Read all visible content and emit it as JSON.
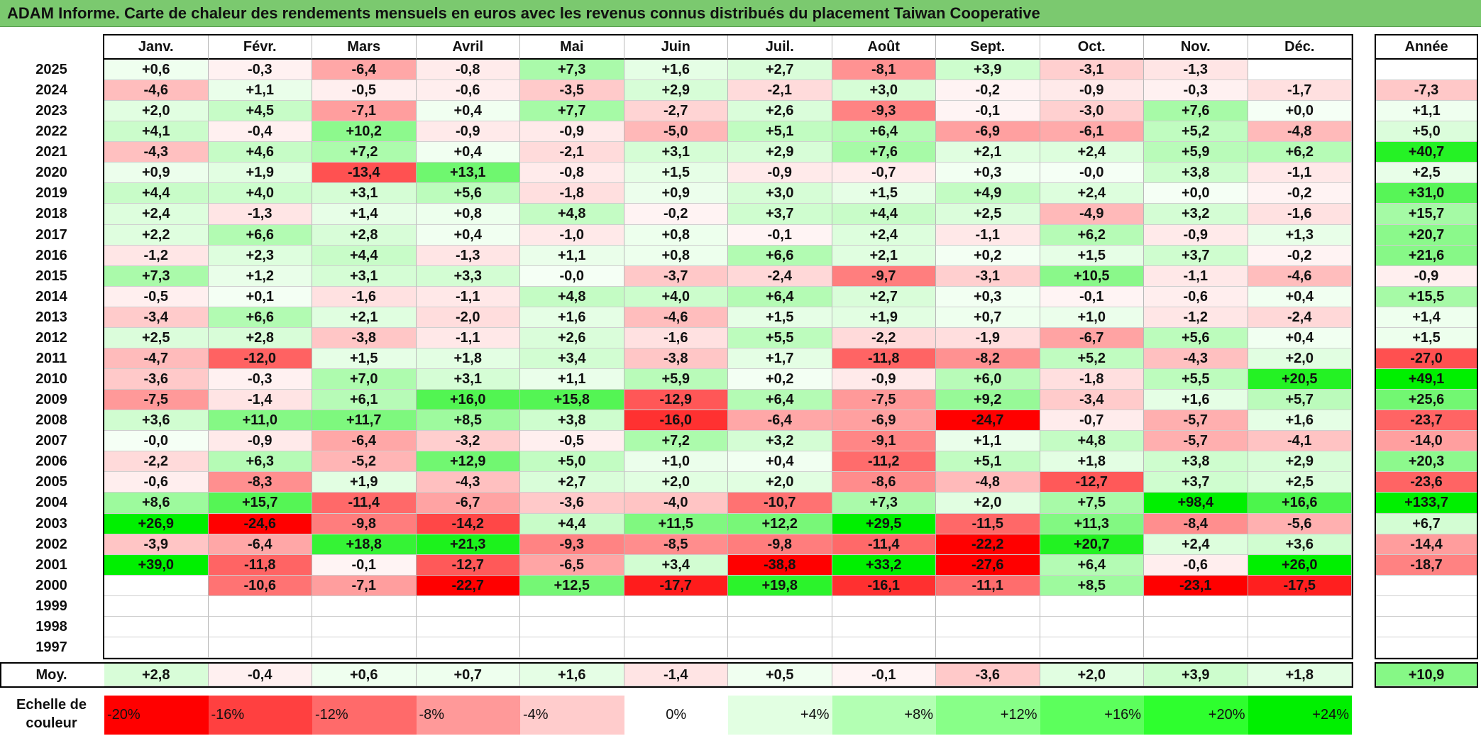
{
  "title": "ADAM Informe. Carte de chaleur des rendements mensuels en euros avec les revenus connus distribués du placement Taiwan Cooperative",
  "chart_data": {
    "type": "heatmap",
    "title": "ADAM Informe. Carte de chaleur des rendements mensuels en euros avec les revenus connus distribués du placement Taiwan Cooperative",
    "columns": [
      "Janv.",
      "Févr.",
      "Mars",
      "Avril",
      "Mai",
      "Juin",
      "Juil.",
      "Août",
      "Sept.",
      "Oct.",
      "Nov.",
      "Déc."
    ],
    "annual_header": "Année",
    "rows": [
      {
        "year": "2025",
        "values": [
          "+0,6",
          "-0,3",
          "-6,4",
          "-0,8",
          "+7,3",
          "+1,6",
          "+2,7",
          "-8,1",
          "+3,9",
          "-3,1",
          "-1,3",
          ""
        ],
        "annual": ""
      },
      {
        "year": "2024",
        "values": [
          "-4,6",
          "+1,1",
          "-0,5",
          "-0,6",
          "-3,5",
          "+2,9",
          "-2,1",
          "+3,0",
          "-0,2",
          "-0,9",
          "-0,3",
          "-1,7"
        ],
        "annual": "-7,3"
      },
      {
        "year": "2023",
        "values": [
          "+2,0",
          "+4,5",
          "-7,1",
          "+0,4",
          "+7,7",
          "-2,7",
          "+2,6",
          "-9,3",
          "-0,1",
          "-3,0",
          "+7,6",
          "+0,0"
        ],
        "annual": "+1,1"
      },
      {
        "year": "2022",
        "values": [
          "+4,1",
          "-0,4",
          "+10,2",
          "-0,9",
          "-0,9",
          "-5,0",
          "+5,1",
          "+6,4",
          "-6,9",
          "-6,1",
          "+5,2",
          "-4,8"
        ],
        "annual": "+5,0"
      },
      {
        "year": "2021",
        "values": [
          "-4,3",
          "+4,6",
          "+7,2",
          "+0,4",
          "-2,1",
          "+3,1",
          "+2,9",
          "+7,6",
          "+2,1",
          "+2,4",
          "+5,9",
          "+6,2"
        ],
        "annual": "+40,7"
      },
      {
        "year": "2020",
        "values": [
          "+0,9",
          "+1,9",
          "-13,4",
          "+13,1",
          "-0,8",
          "+1,5",
          "-0,9",
          "-0,7",
          "+0,3",
          "-0,0",
          "+3,8",
          "-1,1"
        ],
        "annual": "+2,5"
      },
      {
        "year": "2019",
        "values": [
          "+4,4",
          "+4,0",
          "+3,1",
          "+5,6",
          "-1,8",
          "+0,9",
          "+3,0",
          "+1,5",
          "+4,9",
          "+2,4",
          "+0,0",
          "-0,2"
        ],
        "annual": "+31,0"
      },
      {
        "year": "2018",
        "values": [
          "+2,4",
          "-1,3",
          "+1,4",
          "+0,8",
          "+4,8",
          "-0,2",
          "+3,7",
          "+4,4",
          "+2,5",
          "-4,9",
          "+3,2",
          "-1,6"
        ],
        "annual": "+15,7"
      },
      {
        "year": "2017",
        "values": [
          "+2,2",
          "+6,6",
          "+2,8",
          "+0,4",
          "-1,0",
          "+0,8",
          "-0,1",
          "+2,4",
          "-1,1",
          "+6,2",
          "-0,9",
          "+1,3"
        ],
        "annual": "+20,7"
      },
      {
        "year": "2016",
        "values": [
          "-1,2",
          "+2,3",
          "+4,4",
          "-1,3",
          "+1,1",
          "+0,8",
          "+6,6",
          "+2,1",
          "+0,2",
          "+1,5",
          "+3,7",
          "-0,2"
        ],
        "annual": "+21,6"
      },
      {
        "year": "2015",
        "values": [
          "+7,3",
          "+1,2",
          "+3,1",
          "+3,3",
          "-0,0",
          "-3,7",
          "-2,4",
          "-9,7",
          "-3,1",
          "+10,5",
          "-1,1",
          "-4,6"
        ],
        "annual": "-0,9"
      },
      {
        "year": "2014",
        "values": [
          "-0,5",
          "+0,1",
          "-1,6",
          "-1,1",
          "+4,8",
          "+4,0",
          "+6,4",
          "+2,7",
          "+0,3",
          "-0,1",
          "-0,6",
          "+0,4"
        ],
        "annual": "+15,5"
      },
      {
        "year": "2013",
        "values": [
          "-3,4",
          "+6,6",
          "+2,1",
          "-2,0",
          "+1,6",
          "-4,6",
          "+1,5",
          "+1,9",
          "+0,7",
          "+1,0",
          "-1,2",
          "-2,4"
        ],
        "annual": "+1,4"
      },
      {
        "year": "2012",
        "values": [
          "+2,5",
          "+2,8",
          "-3,8",
          "-1,1",
          "+2,6",
          "-1,6",
          "+5,5",
          "-2,2",
          "-1,9",
          "-6,7",
          "+5,6",
          "+0,4"
        ],
        "annual": "+1,5"
      },
      {
        "year": "2011",
        "values": [
          "-4,7",
          "-12,0",
          "+1,5",
          "+1,8",
          "+3,4",
          "-3,8",
          "+1,7",
          "-11,8",
          "-8,2",
          "+5,2",
          "-4,3",
          "+2,0"
        ],
        "annual": "-27,0"
      },
      {
        "year": "2010",
        "values": [
          "-3,6",
          "-0,3",
          "+7,0",
          "+3,1",
          "+1,1",
          "+5,9",
          "+0,2",
          "-0,9",
          "+6,0",
          "-1,8",
          "+5,5",
          "+20,5"
        ],
        "annual": "+49,1"
      },
      {
        "year": "2009",
        "values": [
          "-7,5",
          "-1,4",
          "+6,1",
          "+16,0",
          "+15,8",
          "-12,9",
          "+6,4",
          "-7,5",
          "+9,2",
          "-3,4",
          "+1,6",
          "+5,7"
        ],
        "annual": "+25,6"
      },
      {
        "year": "2008",
        "values": [
          "+3,6",
          "+11,0",
          "+11,7",
          "+8,5",
          "+3,8",
          "-16,0",
          "-6,4",
          "-6,9",
          "-24,7",
          "-0,7",
          "-5,7",
          "+1,6"
        ],
        "annual": "-23,7"
      },
      {
        "year": "2007",
        "values": [
          "-0,0",
          "-0,9",
          "-6,4",
          "-3,2",
          "-0,5",
          "+7,2",
          "+3,2",
          "-9,1",
          "+1,1",
          "+4,8",
          "-5,7",
          "-4,1"
        ],
        "annual": "-14,0"
      },
      {
        "year": "2006",
        "values": [
          "-2,2",
          "+6,3",
          "-5,2",
          "+12,9",
          "+5,0",
          "+1,0",
          "+0,4",
          "-11,2",
          "+5,1",
          "+1,8",
          "+3,8",
          "+2,9"
        ],
        "annual": "+20,3"
      },
      {
        "year": "2005",
        "values": [
          "-0,6",
          "-8,3",
          "+1,9",
          "-4,3",
          "+2,7",
          "+2,0",
          "+2,0",
          "-8,6",
          "-4,8",
          "-12,7",
          "+3,7",
          "+2,5"
        ],
        "annual": "-23,6"
      },
      {
        "year": "2004",
        "values": [
          "+8,6",
          "+15,7",
          "-11,4",
          "-6,7",
          "-3,6",
          "-4,0",
          "-10,7",
          "+7,3",
          "+2,0",
          "+7,5",
          "+98,4",
          "+16,6"
        ],
        "annual": "+133,7"
      },
      {
        "year": "2003",
        "values": [
          "+26,9",
          "-24,6",
          "-9,8",
          "-14,2",
          "+4,4",
          "+11,5",
          "+12,2",
          "+29,5",
          "-11,5",
          "+11,3",
          "-8,4",
          "-5,6"
        ],
        "annual": "+6,7"
      },
      {
        "year": "2002",
        "values": [
          "-3,9",
          "-6,4",
          "+18,8",
          "+21,3",
          "-9,3",
          "-8,5",
          "-9,8",
          "-11,4",
          "-22,2",
          "+20,7",
          "+2,4",
          "+3,6"
        ],
        "annual": "-14,4"
      },
      {
        "year": "2001",
        "values": [
          "+39,0",
          "-11,8",
          "-0,1",
          "-12,7",
          "-6,5",
          "+3,4",
          "-38,8",
          "+33,2",
          "-27,6",
          "+6,4",
          "-0,6",
          "+26,0"
        ],
        "annual": "-18,7"
      },
      {
        "year": "2000",
        "values": [
          "",
          "-10,6",
          "-7,1",
          "-22,7",
          "+12,5",
          "-17,7",
          "+19,8",
          "-16,1",
          "-11,1",
          "+8,5",
          "-23,1",
          "-17,5"
        ],
        "annual": ""
      },
      {
        "year": "1999",
        "values": [
          "",
          "",
          "",
          "",
          "",
          "",
          "",
          "",
          "",
          "",
          "",
          ""
        ],
        "annual": ""
      },
      {
        "year": "1998",
        "values": [
          "",
          "",
          "",
          "",
          "",
          "",
          "",
          "",
          "",
          "",
          "",
          ""
        ],
        "annual": ""
      },
      {
        "year": "1997",
        "values": [
          "",
          "",
          "",
          "",
          "",
          "",
          "",
          "",
          "",
          "",
          "",
          ""
        ],
        "annual": ""
      }
    ],
    "average": {
      "label": "Moy.",
      "values": [
        "+2,8",
        "-0,4",
        "+0,6",
        "+0,7",
        "+1,6",
        "-1,4",
        "+0,5",
        "-0,1",
        "-3,6",
        "+2,0",
        "+3,9",
        "+1,8"
      ],
      "annual": "+10,9"
    },
    "scale": {
      "label": "Echelle de couleur",
      "labels": [
        "-20%",
        "-16%",
        "-12%",
        "-8%",
        "-4%",
        "0%",
        "+4%",
        "+8%",
        "+12%",
        "+16%",
        "+20%",
        "+24%"
      ],
      "colors": [
        "#ff0000",
        "#ff4040",
        "#ff6a6a",
        "#ff9999",
        "#ffcccc",
        "#ffffff",
        "#e2ffe2",
        "#b3ffb3",
        "#88ff88",
        "#5cff5c",
        "#2eff2e",
        "#00f000"
      ]
    }
  }
}
